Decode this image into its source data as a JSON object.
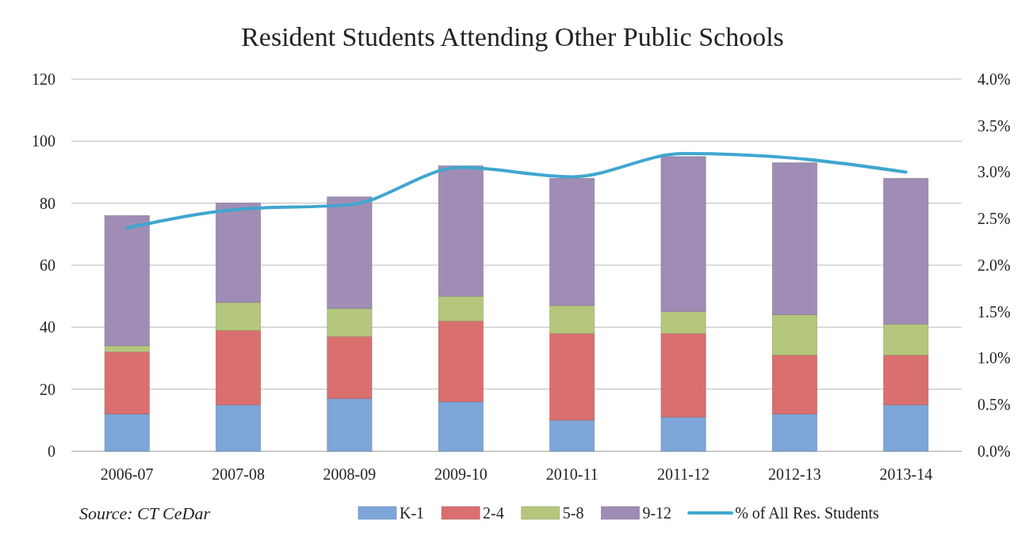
{
  "chart_data": {
    "type": "bar",
    "title": "Resident Students Attending Other Public Schools",
    "categories": [
      "2006-07",
      "2007-08",
      "2008-09",
      "2009-10",
      "2010-11",
      "2011-12",
      "2012-13",
      "2013-14"
    ],
    "stacked": true,
    "series": [
      {
        "name": "K-1",
        "color": "#7ea6d8",
        "values": [
          12,
          15,
          17,
          16,
          10,
          11,
          12,
          15
        ]
      },
      {
        "name": "2-4",
        "color": "#d9706f",
        "values": [
          20,
          24,
          20,
          26,
          28,
          27,
          19,
          16
        ]
      },
      {
        "name": "5-8",
        "color": "#b5c77d",
        "values": [
          2,
          9,
          9,
          8,
          9,
          7,
          13,
          10
        ]
      },
      {
        "name": "9-12",
        "color": "#a08db5",
        "values": [
          42,
          32,
          36,
          42,
          41,
          50,
          49,
          47
        ]
      },
      {
        "name": "% of All Res. Students",
        "type": "line",
        "axis": "y2",
        "color": "#3fa6d0",
        "values": [
          2.4,
          2.6,
          2.65,
          3.05,
          2.95,
          3.2,
          3.15,
          3.0
        ]
      }
    ],
    "ylim": [
      0,
      120
    ],
    "yticks": [
      0,
      20,
      40,
      60,
      80,
      100,
      120
    ],
    "y2lim": [
      0,
      4
    ],
    "y2ticks": [
      {
        "value": 0,
        "label": "0.0%"
      },
      {
        "value": 0.5,
        "label": "0.5%"
      },
      {
        "value": 1,
        "label": "1.0%"
      },
      {
        "value": 1.5,
        "label": "1.5%"
      },
      {
        "value": 2,
        "label": "2.0%"
      },
      {
        "value": 2.5,
        "label": "2.5%"
      },
      {
        "value": 3,
        "label": "3.0%"
      },
      {
        "value": 3.5,
        "label": "3.5%"
      },
      {
        "value": 4,
        "label": "4.0%"
      }
    ],
    "grid": "y",
    "legend": "bottom",
    "marker": "none",
    "annotations": [
      "Source: CT CeDar"
    ]
  }
}
